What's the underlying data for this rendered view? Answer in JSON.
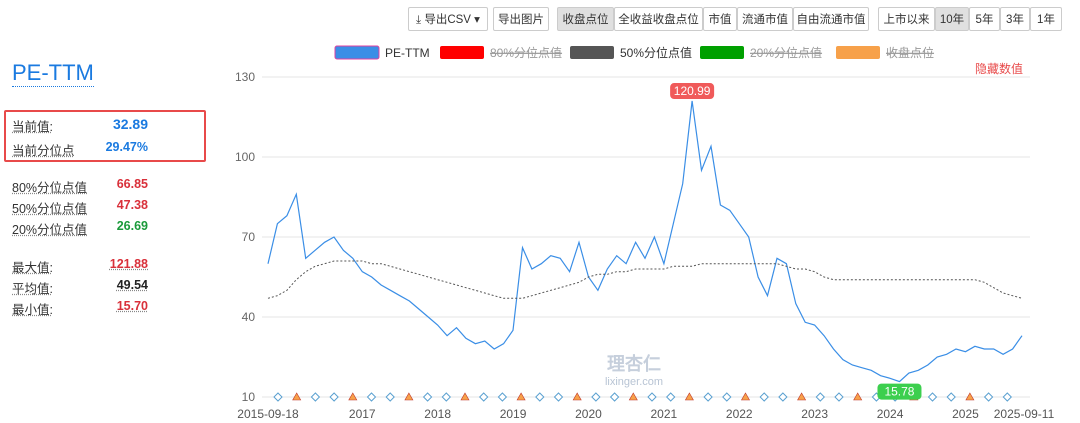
{
  "toolbar": {
    "export_csv": "导出CSV",
    "export_image": "导出图片",
    "metrics": [
      "收盘点位",
      "全收益收盘点位",
      "市值",
      "流通市值",
      "自由流通市值"
    ],
    "active_metric": 0,
    "ranges": [
      "上市以来",
      "10年",
      "5年",
      "3年",
      "1年"
    ],
    "active_range": 1
  },
  "sidebar": {
    "title": "PE-TTM",
    "current": [
      {
        "label": "当前值:",
        "value": "32.89"
      },
      {
        "label": "当前分位点",
        "value": "29.47%"
      }
    ],
    "percentiles": [
      {
        "label": "80%分位点值",
        "value": "66.85"
      },
      {
        "label": "50%分位点值",
        "value": "47.38"
      },
      {
        "label": "20%分位点值",
        "value": "26.69"
      }
    ],
    "stats": [
      {
        "label": "最大值:",
        "value": "121.88"
      },
      {
        "label": "平均值:",
        "value": "49.54"
      },
      {
        "label": "最小值:",
        "value": "15.70"
      }
    ]
  },
  "hide_values": "隐藏数值",
  "watermark": {
    "title": "理杏仁",
    "url": "lixinger.com"
  },
  "chart_data": {
    "type": "line",
    "categories": [
      "2015-09-18",
      null,
      null,
      null,
      null,
      null,
      null,
      null,
      null,
      null,
      "2017",
      null,
      null,
      null,
      null,
      null,
      null,
      null,
      "2018",
      null,
      null,
      null,
      null,
      null,
      null,
      null,
      "2019",
      null,
      null,
      null,
      null,
      null,
      null,
      null,
      "2020",
      null,
      null,
      null,
      null,
      null,
      null,
      null,
      "2021",
      null,
      null,
      null,
      null,
      null,
      null,
      null,
      "2022",
      null,
      null,
      null,
      null,
      null,
      null,
      null,
      "2023",
      null,
      null,
      null,
      null,
      null,
      null,
      null,
      "2024",
      null,
      null,
      null,
      null,
      null,
      null,
      null,
      "2025",
      null,
      null,
      null,
      null,
      null,
      "2025-09-11"
    ],
    "ylim": [
      10,
      130
    ],
    "yticks": [
      10,
      40,
      70,
      100,
      130
    ],
    "grid": true,
    "label_max": true,
    "label_min": true,
    "series": [
      {
        "name": "PE-TTM",
        "color": "#3a8ee6",
        "values": [
          60,
          75,
          78,
          86,
          62,
          65,
          68,
          70,
          65,
          62,
          57,
          55,
          52,
          50,
          48,
          46,
          43,
          40,
          37,
          33,
          36,
          32,
          30,
          31,
          28,
          30,
          35,
          66,
          58,
          60,
          63,
          62,
          57,
          68,
          55,
          50,
          58,
          63,
          60,
          68,
          62,
          70,
          60,
          75,
          90,
          120.99,
          95,
          104,
          82,
          80,
          75,
          70,
          55,
          48,
          62,
          60,
          45,
          38,
          37,
          33,
          28,
          24,
          22,
          21,
          20,
          18,
          17,
          15.78,
          19,
          20,
          22,
          25,
          26,
          28,
          27,
          29,
          28,
          28,
          26,
          28,
          33
        ]
      },
      {
        "name": "80%分位点值",
        "color": "#ff0000",
        "hidden": true
      },
      {
        "name": "50%分位点值",
        "color": "#555555",
        "dashed": true,
        "values": [
          47,
          48,
          50,
          54,
          57,
          59,
          60,
          61,
          61,
          61,
          61,
          60,
          60,
          59,
          58,
          57,
          56,
          55,
          54,
          53,
          52,
          51,
          50,
          49,
          48,
          47,
          47,
          47,
          48,
          49,
          50,
          51,
          52,
          53,
          55,
          56,
          56,
          57,
          57,
          58,
          58,
          58,
          58,
          59,
          59,
          59,
          60,
          60,
          60,
          60,
          60,
          60,
          60,
          60,
          60,
          59,
          58,
          58,
          57,
          55,
          54,
          54,
          54,
          54,
          54,
          54,
          54,
          54,
          54,
          54,
          54,
          54,
          54,
          54,
          54,
          54,
          53,
          51,
          49,
          48,
          47
        ]
      },
      {
        "name": "20%分位点值",
        "color": "#00a000",
        "hidden": true
      },
      {
        "name": "收盘点位",
        "color": "#f7a14a",
        "hidden": true
      }
    ]
  }
}
